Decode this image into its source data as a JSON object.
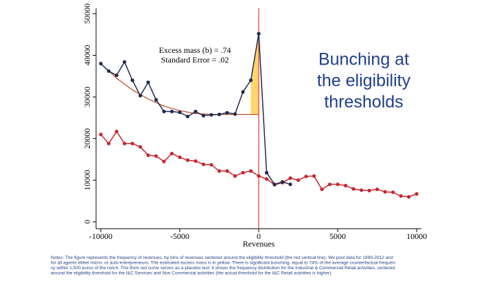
{
  "chart_data": {
    "type": "line",
    "heading": [
      "Bunching at",
      "the eligibility",
      "thresholds"
    ],
    "annotations": [
      "Excess mass (b) = .74",
      "Standard Error = .02"
    ],
    "x_label": "Revenues",
    "xlim": [
      -10300,
      10300
    ],
    "ylim": [
      -1650,
      51300
    ],
    "xticks": [
      -10000,
      -5000,
      0,
      5000,
      10000
    ],
    "yticks": [
      0,
      10000,
      20000,
      30000,
      40000,
      50000
    ],
    "threshold": {
      "x": 0,
      "color": "#e8463a"
    },
    "excess_region": {
      "x": [
        -500,
        0
      ],
      "color": "#ffd66e"
    },
    "series": [
      {
        "color": "#1f2a4d",
        "markers": true,
        "x": [
          -10000,
          -9500,
          -9000,
          -8500,
          -8000,
          -7500,
          -7000,
          -6500,
          -6000,
          -5500,
          -5000,
          -4500,
          -4000,
          -3500,
          -3000,
          -2500,
          -2000,
          -1500,
          -1000,
          -500,
          0,
          500,
          1000,
          1500,
          2000
        ],
        "values": [
          38000,
          36200,
          35200,
          38400,
          34000,
          30300,
          33500,
          29300,
          26500,
          26500,
          26300,
          25300,
          26500,
          25500,
          25700,
          25800,
          26200,
          25900,
          31200,
          34000,
          45200,
          11800,
          9000,
          9600,
          9000
        ]
      },
      {
        "color": "#c8242d",
        "markers": true,
        "x": [
          -10000,
          -9500,
          -9000,
          -8500,
          -8000,
          -7500,
          -7000,
          -6500,
          -6000,
          -5500,
          -5000,
          -4500,
          -4000,
          -3500,
          -3000,
          -2500,
          -2000,
          -1500,
          -1000,
          -500,
          0,
          500,
          1000,
          1500,
          2000,
          2500,
          3000,
          3500,
          4000,
          4500,
          5000,
          5500,
          6000,
          6500,
          7000,
          7500,
          8000,
          8500,
          9000,
          9500,
          10000
        ],
        "values": [
          21000,
          18800,
          21700,
          18800,
          18800,
          18000,
          16000,
          15800,
          14500,
          16400,
          15500,
          14800,
          14600,
          13800,
          13700,
          12200,
          12200,
          11000,
          11800,
          12200,
          11000,
          10300,
          8900,
          9400,
          10500,
          10000,
          10900,
          11000,
          7800,
          9000,
          9000,
          8700,
          7900,
          7600,
          7500,
          7800,
          7200,
          7100,
          6200,
          6000,
          6700
        ]
      },
      {
        "color": "#c0502b",
        "markers": false,
        "x": [
          -10000,
          -9000,
          -8000,
          -7000,
          -6000,
          -5000,
          -4000,
          -3000,
          -2000,
          -1000,
          -500,
          0
        ],
        "values": [
          38000,
          34500,
          31700,
          29500,
          27800,
          26700,
          26000,
          25800,
          25800,
          25800,
          25800,
          25800
        ]
      }
    ],
    "notes": [
      "Notes: The figure represents the frequency of revenues, by bins of revenues centered around the eligibility threshold (the red vertical line). We pool data for 1999-2012 and",
      "for all agents either micro- or auto-entrepreneurs. The estimated excess mass is in yellow. There is significant bunching, equal to 74% of the average counterfactual frequen-",
      "cy within 1,500 euros of the notch. The thick red curve serves as a placebo test: it shows the frequency distribution for the Industrial & Commercial Retail activities, centered",
      "around the eligibility threshold for the I&C Services and Non Commercial activities (the actual threshold for the I&C Retail activities is higher)."
    ]
  }
}
